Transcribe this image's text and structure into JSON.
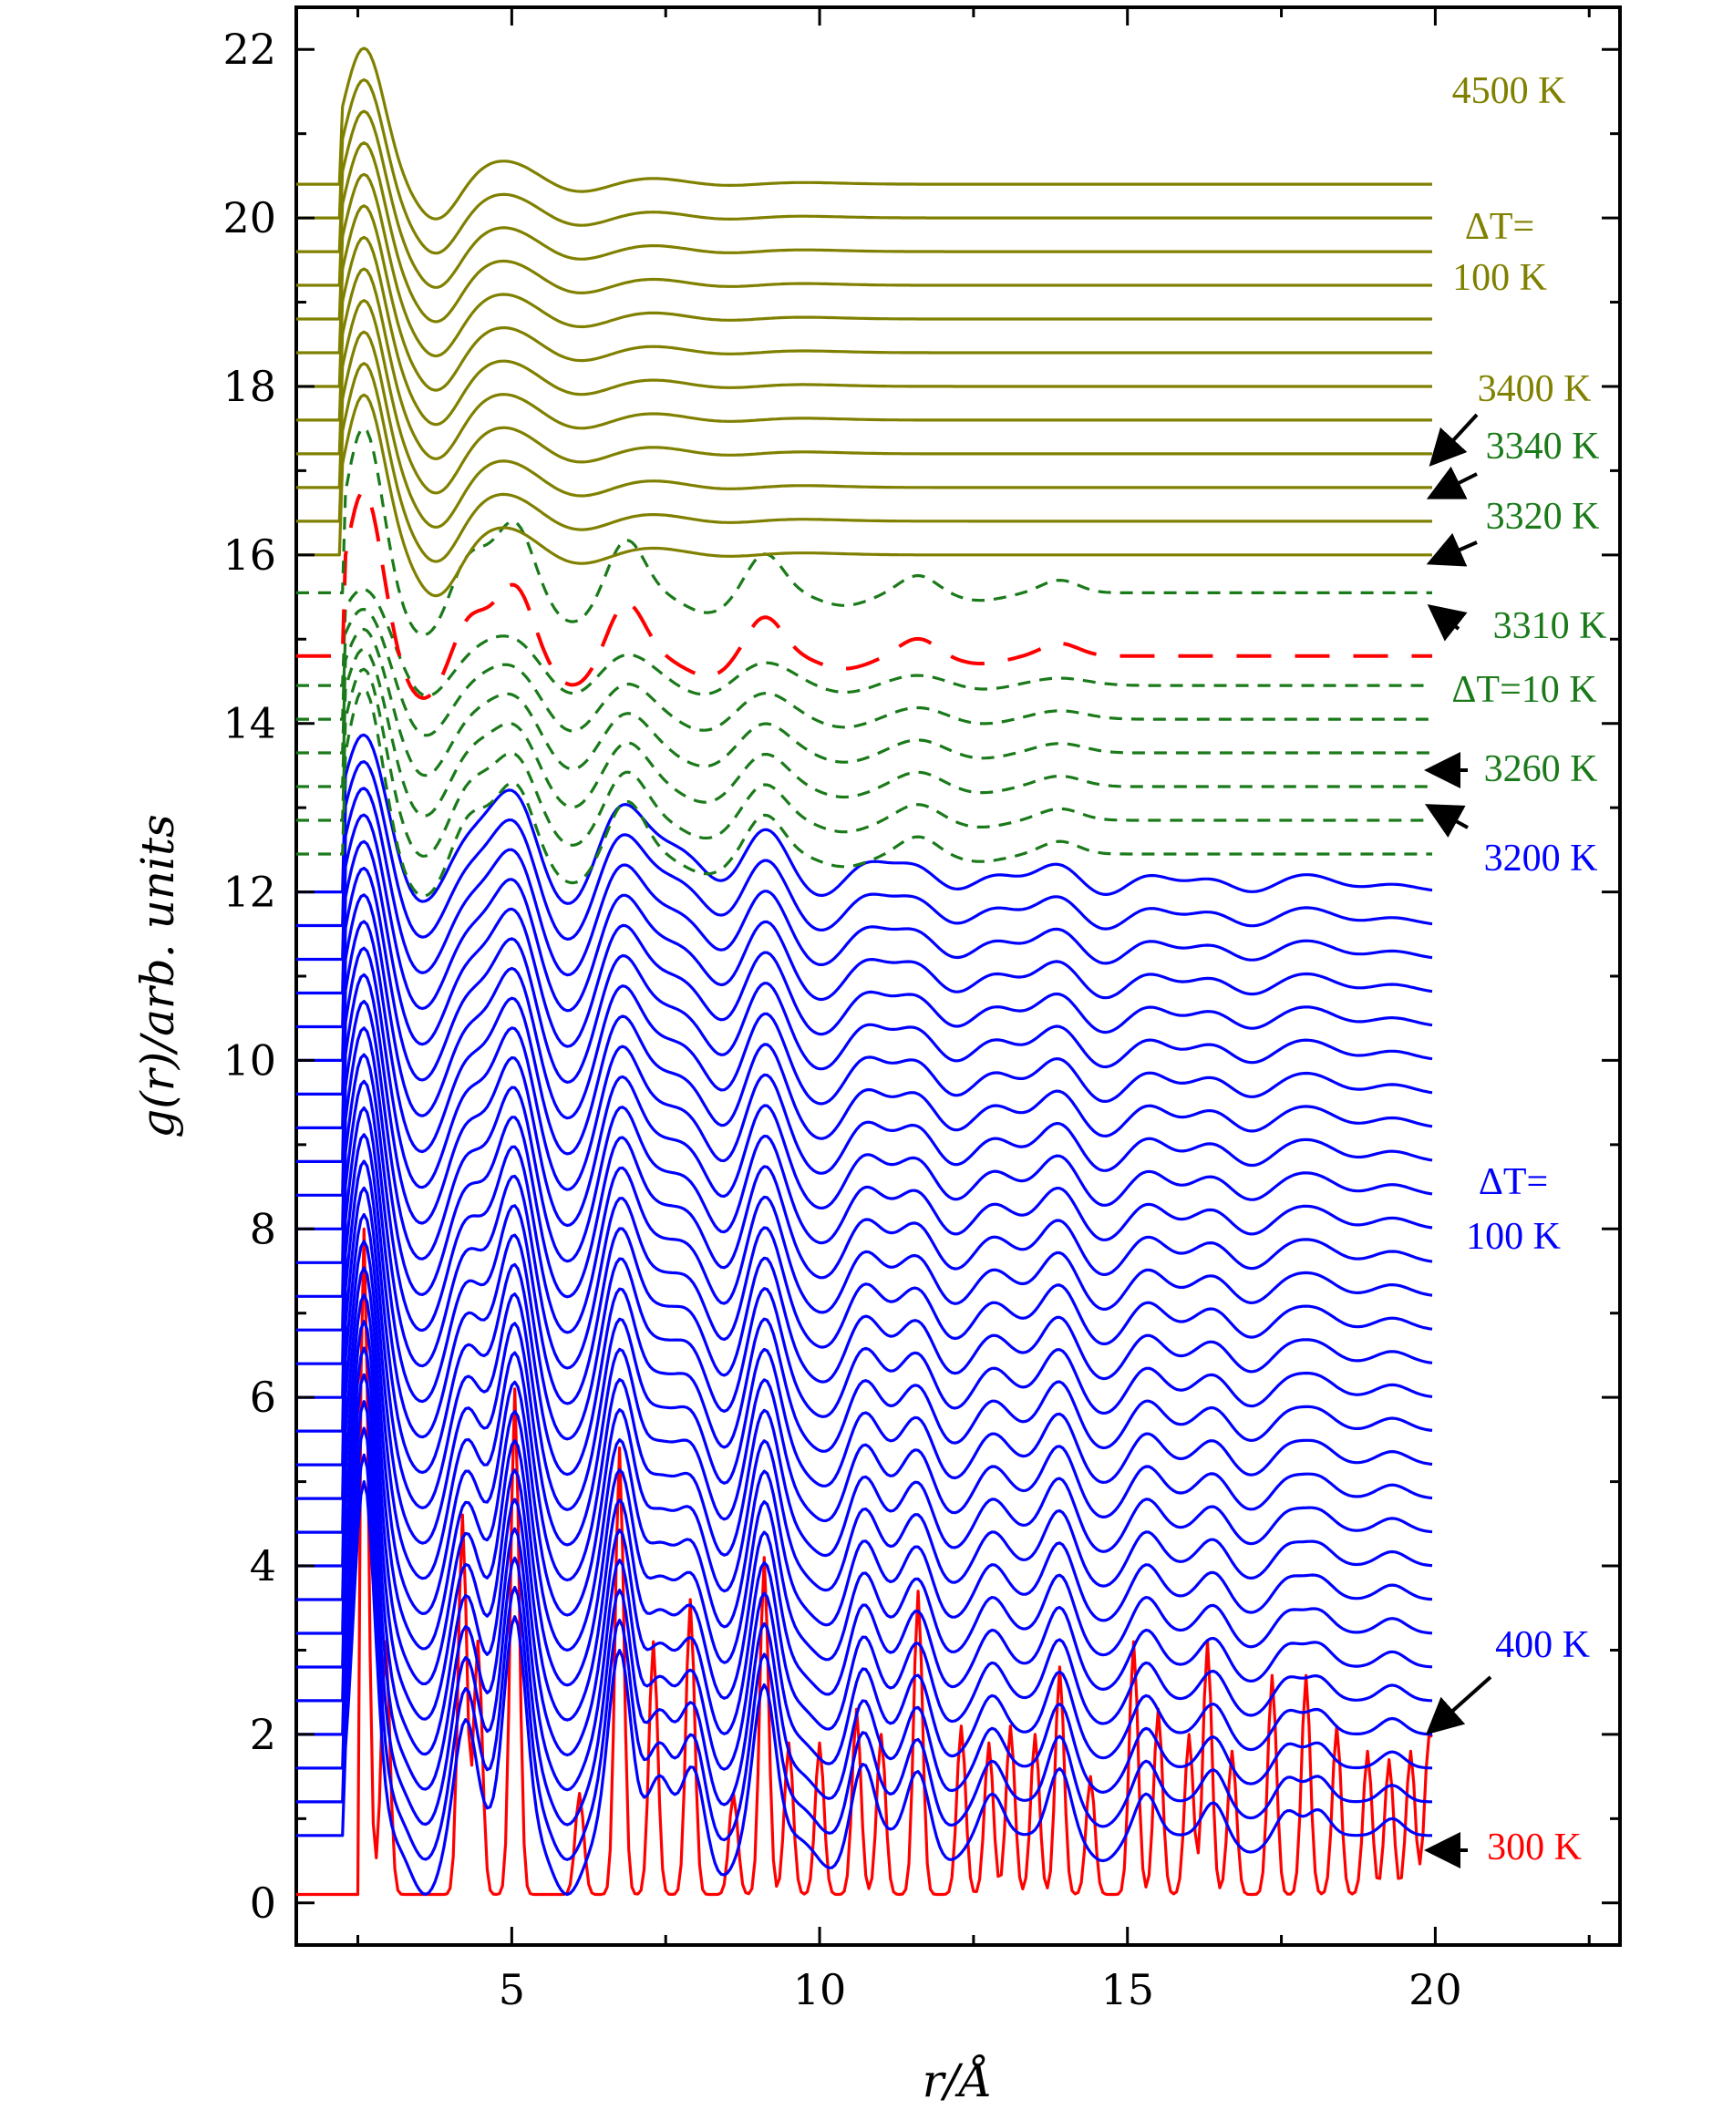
{
  "chart_data": {
    "type": "line",
    "title": "",
    "xlabel": "r/Å",
    "ylabel": "g(r)/arb. units",
    "xlim": [
      1.5,
      23
    ],
    "ylim": [
      -0.5,
      22.5
    ],
    "xticks": [
      5,
      10,
      15,
      20
    ],
    "xtick_labels": [
      "5",
      "10",
      "15",
      "20"
    ],
    "yticks": [
      0,
      2,
      4,
      6,
      8,
      10,
      12,
      14,
      16,
      18,
      20,
      22
    ],
    "ytick_labels": [
      "0",
      "2",
      "4",
      "6",
      "8",
      "10",
      "12",
      "14",
      "16",
      "18",
      "20",
      "22"
    ],
    "colors": {
      "solid_300K": "#ff0000",
      "solid": "#0000ff",
      "transition": "#1a7a1a",
      "melt_marker": "#ff0000",
      "liquid": "#808000",
      "arrow": "#000000"
    },
    "series_groups": [
      {
        "name": "300 K",
        "phase": "crystal",
        "color": "#ff0000",
        "style": "solid",
        "count": 1,
        "first_temperature_K": 300,
        "delta_T_K": 0,
        "baseline_start": 0.1,
        "baseline_step": 0,
        "baseline_end": 0.5
      },
      {
        "name": "400 K – 3200 K",
        "phase": "solid",
        "color": "#0000ff",
        "style": "solid",
        "count": 29,
        "first_temperature_K": 400,
        "delta_T_K": 100,
        "baseline_start": 0.8,
        "baseline_step": 0.4,
        "baseline_end": 12.95
      },
      {
        "name": "3260 K – 3310 K",
        "phase": "transition",
        "color": "#1a7a1a",
        "style": "dashed",
        "count": 6,
        "first_temperature_K": 3260,
        "delta_T_K": 10,
        "baseline_start": 12.45,
        "baseline_step": 0.4,
        "baseline_end": 15.4
      },
      {
        "name": "3320 K",
        "phase": "transition",
        "color": "#ff0000",
        "style": "long-dash",
        "count": 1,
        "first_temperature_K": 3320,
        "delta_T_K": 0,
        "baseline_start": 14.8,
        "baseline_step": 0,
        "baseline_end": 15.8
      },
      {
        "name": "3340 K",
        "phase": "transition",
        "color": "#1a7a1a",
        "style": "dashed",
        "count": 1,
        "first_temperature_K": 3340,
        "delta_T_K": 0,
        "baseline_start": 15.55,
        "baseline_step": 0,
        "baseline_end": 16.6
      },
      {
        "name": "3400 K – 4500 K",
        "phase": "liquid",
        "color": "#808000",
        "style": "solid",
        "count": 12,
        "first_temperature_K": 3400,
        "delta_T_K": 100,
        "baseline_start": 16.0,
        "baseline_step": 0.4,
        "baseline_end": 21.4
      }
    ],
    "annotations": [
      {
        "text": "4500 K",
        "color": "#808000"
      },
      {
        "text": "ΔT=",
        "color": "#808000",
        "line": 1
      },
      {
        "text": "100 K",
        "color": "#808000",
        "line": 2
      },
      {
        "text": "3400 K",
        "color": "#808000"
      },
      {
        "text": "3340 K",
        "color": "#1a7a1a"
      },
      {
        "text": "3320 K",
        "color": "#1a7a1a"
      },
      {
        "text": "3310 K",
        "color": "#1a7a1a"
      },
      {
        "text": "ΔT=10 K",
        "color": "#1a7a1a"
      },
      {
        "text": "3260 K",
        "color": "#1a7a1a"
      },
      {
        "text": "3200 K",
        "color": "#0000ff"
      },
      {
        "text": "ΔT=",
        "color": "#0000ff",
        "line": 1
      },
      {
        "text": "100 K",
        "color": "#0000ff",
        "line": 2
      },
      {
        "text": "400 K",
        "color": "#0000ff"
      },
      {
        "text": "300 K",
        "color": "#ff0000"
      }
    ]
  }
}
